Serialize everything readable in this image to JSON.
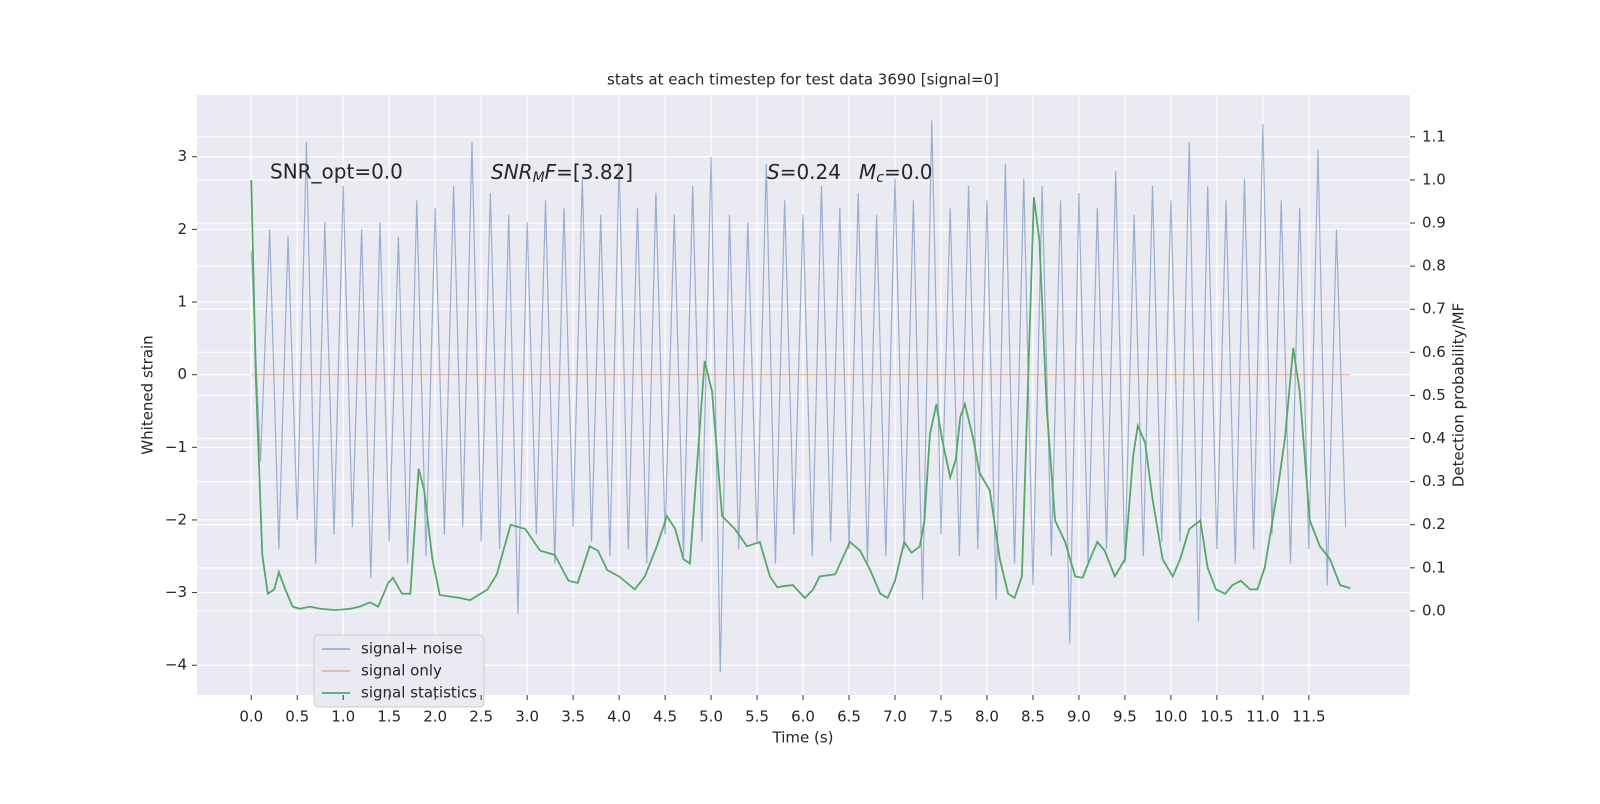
{
  "chart_data": {
    "type": "line",
    "title": "stats at each timestep for test data 3690 [signal=0]",
    "x_label": "Time (s)",
    "y_label": "Whitened strain",
    "y2_label": "Detection probability/MF",
    "annotations": [
      "SNR_opt=0.0",
      [
        "SNR",
        "M",
        "F",
        "=[3.82]"
      ],
      [
        "S",
        "=0.24"
      ],
      [
        "M",
        "c",
        "=0.0"
      ]
    ],
    "xlim": [
      -0.59,
      12.6
    ],
    "ylim": [
      -4.41,
      3.85
    ],
    "y2lim": [
      -0.195,
      1.197
    ],
    "xticks": [
      {
        "value": 0,
        "label": "0.0"
      },
      {
        "value": 0.5,
        "label": "0.5"
      },
      {
        "value": 1,
        "label": "1.0"
      },
      {
        "value": 1.5,
        "label": "1.5"
      },
      {
        "value": 2,
        "label": "2.0"
      },
      {
        "value": 2.5,
        "label": "2.5"
      },
      {
        "value": 3,
        "label": "3.0"
      },
      {
        "value": 3.5,
        "label": "3.5"
      },
      {
        "value": 4,
        "label": "4.0"
      },
      {
        "value": 4.5,
        "label": "4.5"
      },
      {
        "value": 5,
        "label": "5.0"
      },
      {
        "value": 5.5,
        "label": "5.5"
      },
      {
        "value": 6,
        "label": "6.0"
      },
      {
        "value": 6.5,
        "label": "6.5"
      },
      {
        "value": 7,
        "label": "7.0"
      },
      {
        "value": 7.5,
        "label": "7.5"
      },
      {
        "value": 8,
        "label": "8.0"
      },
      {
        "value": 8.5,
        "label": "8.5"
      },
      {
        "value": 9,
        "label": "9.0"
      },
      {
        "value": 9.5,
        "label": "9.5"
      },
      {
        "value": 10,
        "label": "10.0"
      },
      {
        "value": 10.5,
        "label": "10.5"
      },
      {
        "value": 11,
        "label": "11.0"
      },
      {
        "value": 11.5,
        "label": "11.5"
      }
    ],
    "yticks": [
      {
        "value": -4,
        "label": "−4"
      },
      {
        "value": -3,
        "label": "−3"
      },
      {
        "value": -2,
        "label": "−2"
      },
      {
        "value": -1,
        "label": "−1"
      },
      0,
      1,
      2,
      3
    ],
    "y2ticks": [
      {
        "value": 0,
        "label": "0.0"
      },
      {
        "value": 0.1,
        "label": "0.1"
      },
      {
        "value": 0.2,
        "label": "0.2"
      },
      {
        "value": 0.3,
        "label": "0.3"
      },
      {
        "value": 0.4,
        "label": "0.4"
      },
      {
        "value": 0.5,
        "label": "0.5"
      },
      {
        "value": 0.6,
        "label": "0.6"
      },
      {
        "value": 0.7,
        "label": "0.7"
      },
      {
        "value": 0.8,
        "label": "0.8"
      },
      {
        "value": 0.9,
        "label": "0.9"
      },
      {
        "value": 1,
        "label": "1.0"
      },
      {
        "value": 1.1,
        "label": "1.1"
      }
    ],
    "grid": true,
    "legend": "lower left",
    "series": [
      {
        "name": "signal+ noise",
        "color": "#4c72b0",
        "alpha": 0.5,
        "x": [
          0,
          0.1,
          0.2,
          0.3,
          0.4,
          0.5,
          0.6,
          0.7,
          0.8,
          0.9,
          1,
          1.1,
          1.2,
          1.3,
          1.4,
          1.5,
          1.6,
          1.7,
          1.8,
          1.9,
          2,
          2.1,
          2.2,
          2.3,
          2.4,
          2.5,
          2.6,
          2.7,
          2.8,
          2.9,
          3,
          3.1,
          3.2,
          3.3,
          3.4,
          3.5,
          3.6,
          3.7,
          3.8,
          3.9,
          4,
          4.1,
          4.2,
          4.3,
          4.4,
          4.5,
          4.6,
          4.7,
          4.8,
          4.9,
          5,
          5.1,
          5.2,
          5.3,
          5.4,
          5.5,
          5.6,
          5.7,
          5.8,
          5.9,
          6,
          6.1,
          6.2,
          6.3,
          6.4,
          6.5,
          6.6,
          6.7,
          6.8,
          6.9,
          7,
          7.1,
          7.2,
          7.3,
          7.4,
          7.5,
          7.6,
          7.7,
          7.8,
          7.9,
          8,
          8.1,
          8.2,
          8.3,
          8.4,
          8.5,
          8.6,
          8.7,
          8.8,
          8.9,
          9,
          9.1,
          9.2,
          9.3,
          9.4,
          9.5,
          9.6,
          9.7,
          9.8,
          9.9,
          10,
          10.1,
          10.2,
          10.3,
          10.4,
          10.5,
          10.6,
          10.7,
          10.8,
          10.9,
          11,
          11.1,
          11.2,
          11.3,
          11.4,
          11.5,
          11.6,
          11.7,
          11.8,
          11.9
        ],
        "values": [
          1.7,
          -1.2,
          2.0,
          -2.4,
          1.9,
          -2.0,
          3.2,
          -2.6,
          2.1,
          -2.2,
          2.6,
          -2.1,
          2.0,
          -2.8,
          2.1,
          -2.3,
          1.9,
          -2.6,
          2.4,
          -2.5,
          2.3,
          -2.2,
          2.6,
          -2.1,
          3.2,
          -2.3,
          2.5,
          -2.4,
          2.2,
          -3.3,
          2.1,
          -2.2,
          2.4,
          -2.6,
          2.3,
          -2.1,
          2.7,
          -2.3,
          2.2,
          -2.5,
          2.9,
          -2.4,
          2.3,
          -2.6,
          2.5,
          -2.2,
          2.2,
          -2.5,
          2.6,
          -2.3,
          3.0,
          -4.1,
          2.2,
          -2.4,
          2.1,
          -2.3,
          2.9,
          -2.6,
          2.4,
          -2.2,
          2.2,
          -2.5,
          2.6,
          -2.3,
          2.3,
          -2.4,
          2.5,
          -2.6,
          2.2,
          -2.5,
          2.7,
          -2.4,
          2.4,
          -3.1,
          3.5,
          -2.2,
          2.3,
          -2.5,
          2.6,
          -2.4,
          2.4,
          -3.1,
          2.9,
          -2.6,
          2.7,
          -2.9,
          2.6,
          -2.5,
          2.4,
          -3.7,
          2.5,
          -2.6,
          2.3,
          -2.4,
          2.8,
          -2.6,
          2.2,
          -2.5,
          2.6,
          -2.3,
          2.4,
          -2.3,
          3.2,
          -3.4,
          2.6,
          -2.4,
          2.4,
          -2.6,
          2.7,
          -2.4,
          3.45,
          -2.2,
          2.4,
          -2.6,
          2.3,
          -2.4,
          3.1,
          -2.9,
          2.0,
          -2.1
        ]
      },
      {
        "name": "signal only",
        "color": "#dd8452",
        "alpha": 0.5,
        "x": [
          0,
          11.95
        ],
        "values": [
          0,
          0
        ]
      },
      {
        "name": "signal statistics",
        "color": "#55a868",
        "alpha": 1,
        "axis": "y2",
        "x": [
          0,
          0.05,
          0.12,
          0.18,
          0.25,
          0.3,
          0.37,
          0.45,
          0.53,
          0.64,
          0.75,
          0.91,
          1.08,
          1.18,
          1.29,
          1.38,
          1.49,
          1.54,
          1.64,
          1.73,
          1.82,
          1.88,
          1.97,
          2.05,
          2.27,
          2.38,
          2.57,
          2.67,
          2.82,
          2.98,
          3.14,
          3.3,
          3.45,
          3.55,
          3.68,
          3.77,
          3.87,
          4.0,
          4.17,
          4.28,
          4.41,
          4.52,
          4.61,
          4.7,
          4.77,
          4.93,
          5.01,
          5.12,
          5.26,
          5.39,
          5.53,
          5.64,
          5.72,
          5.8,
          5.89,
          6.02,
          6.11,
          6.18,
          6.35,
          6.51,
          6.62,
          6.73,
          6.84,
          6.92,
          7.0,
          7.1,
          7.18,
          7.27,
          7.32,
          7.38,
          7.45,
          7.51,
          7.6,
          7.66,
          7.71,
          7.76,
          7.85,
          7.92,
          8.03,
          8.14,
          8.23,
          8.3,
          8.38,
          8.51,
          8.57,
          8.65,
          8.74,
          8.85,
          8.96,
          9.04,
          9.12,
          9.2,
          9.28,
          9.39,
          9.5,
          9.59,
          9.64,
          9.72,
          9.8,
          9.91,
          10.02,
          10.1,
          10.2,
          10.32,
          10.4,
          10.49,
          10.59,
          10.67,
          10.76,
          10.86,
          10.94,
          11.02,
          11.16,
          11.24,
          11.33,
          11.4,
          11.51,
          11.62,
          11.73,
          11.84,
          11.95
        ],
        "values": [
          1.0,
          0.54,
          0.13,
          0.04,
          0.05,
          0.09,
          0.05,
          0.01,
          0.005,
          0.01,
          0.005,
          0.002,
          0.005,
          0.01,
          0.02,
          0.01,
          0.065,
          0.077,
          0.04,
          0.04,
          0.33,
          0.28,
          0.12,
          0.037,
          0.03,
          0.025,
          0.05,
          0.085,
          0.2,
          0.19,
          0.14,
          0.13,
          0.07,
          0.065,
          0.15,
          0.14,
          0.095,
          0.08,
          0.05,
          0.08,
          0.15,
          0.22,
          0.19,
          0.12,
          0.11,
          0.58,
          0.51,
          0.22,
          0.19,
          0.15,
          0.16,
          0.08,
          0.055,
          0.058,
          0.06,
          0.03,
          0.05,
          0.08,
          0.085,
          0.16,
          0.14,
          0.095,
          0.04,
          0.03,
          0.07,
          0.16,
          0.135,
          0.15,
          0.21,
          0.41,
          0.48,
          0.4,
          0.31,
          0.35,
          0.45,
          0.48,
          0.4,
          0.32,
          0.28,
          0.12,
          0.04,
          0.03,
          0.08,
          0.96,
          0.86,
          0.47,
          0.21,
          0.16,
          0.08,
          0.077,
          0.12,
          0.16,
          0.14,
          0.08,
          0.12,
          0.36,
          0.43,
          0.39,
          0.26,
          0.12,
          0.08,
          0.12,
          0.19,
          0.21,
          0.1,
          0.05,
          0.04,
          0.06,
          0.07,
          0.05,
          0.05,
          0.1,
          0.28,
          0.4,
          0.61,
          0.51,
          0.21,
          0.15,
          0.12,
          0.06,
          0.053
        ]
      }
    ]
  }
}
